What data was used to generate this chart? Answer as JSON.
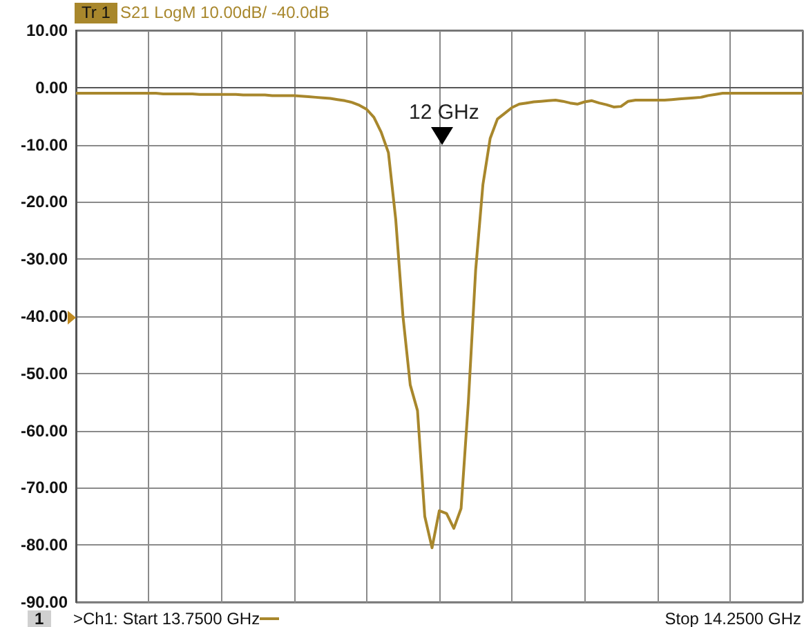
{
  "chart_data": {
    "type": "line",
    "title": "S21 LogM 10.00dB/  -40.0dB",
    "annotations": [
      "Tr 1",
      "1",
      ">Ch1: Start  13.7500 GHz",
      "Stop  14.2500 GHz",
      "12 GHz"
    ],
    "categories": [
      null,
      null,
      null,
      null,
      null,
      null,
      null,
      null,
      null,
      null,
      null,
      null,
      null,
      null,
      null,
      null,
      null,
      null,
      null,
      null,
      null,
      null,
      null,
      null,
      null,
      null,
      null,
      null,
      null,
      null,
      null,
      null,
      null,
      null,
      null,
      null,
      null,
      null,
      null,
      null,
      null,
      null,
      null,
      null,
      null,
      null,
      null,
      null,
      null,
      null,
      null,
      null,
      null,
      null,
      null,
      null,
      null,
      null,
      null,
      null,
      null,
      null,
      null,
      null,
      null,
      null,
      null,
      null,
      null,
      null,
      null,
      null,
      null,
      null,
      null,
      null,
      null,
      null,
      null,
      null,
      null,
      null,
      null,
      null,
      null,
      null,
      null,
      null,
      null,
      null,
      null,
      null,
      null,
      null,
      null,
      null,
      null,
      null,
      null,
      null,
      null
    ],
    "ylim": [
      -90,
      10
    ],
    "yticks": [
      {
        "value": 10,
        "label": "10.00"
      },
      {
        "value": 0,
        "label": "0.00"
      },
      {
        "value": -10,
        "label": "-10.00"
      },
      {
        "value": -20,
        "label": "-20.00"
      },
      {
        "value": -30,
        "label": "-30.00"
      },
      {
        "value": -40,
        "label": "-40.00"
      },
      {
        "value": -50,
        "label": "-50.00"
      },
      {
        "value": -60,
        "label": "-60.00"
      },
      {
        "value": -70,
        "label": "-70.00"
      },
      {
        "value": -80,
        "label": "-80.00"
      },
      {
        "value": -90,
        "label": "-90.00"
      }
    ],
    "tick_labels": "y",
    "grid": true,
    "line_style": "solid",
    "series": [
      {
        "color": "#a8872c",
        "values": [
          -1.0,
          -1.0,
          -1.0,
          -1.0,
          -1.0,
          -1.0,
          -1.0,
          -1.0,
          -1.0,
          -1.0,
          -1.0,
          -1.0,
          -1.1,
          -1.1,
          -1.1,
          -1.1,
          -1.1,
          -1.2,
          -1.2,
          -1.2,
          -1.2,
          -1.2,
          -1.2,
          -1.3,
          -1.3,
          -1.3,
          -1.3,
          -1.4,
          -1.4,
          -1.4,
          -1.4,
          -1.5,
          -1.6,
          -1.7,
          -1.8,
          -1.9,
          -2.1,
          -2.3,
          -2.6,
          -3.1,
          -3.8,
          -5.2,
          -7.8,
          -11.4,
          -23.0,
          -40.0,
          -52.0,
          -56.5,
          -75.0,
          -80.5,
          -74.0,
          -74.5,
          -77.1,
          -73.6,
          -55.0,
          -32.0,
          -17.0,
          -8.9,
          -5.5,
          -4.5,
          -3.5,
          -2.9,
          -2.7,
          -2.5,
          -2.4,
          -2.3,
          -2.2,
          -2.4,
          -2.7,
          -2.9,
          -2.5,
          -2.3,
          -2.7,
          -3.0,
          -3.4,
          -3.3,
          -2.4,
          -2.2,
          -2.2,
          -2.2,
          -2.2,
          -2.2,
          -2.1,
          -2.0,
          -1.9,
          -1.8,
          -1.7,
          -1.4,
          -1.2,
          -1.0,
          -1.0,
          -1.0,
          -1.0,
          -1.0,
          -1.0,
          -1.0,
          -1.0,
          -1.0,
          -1.0,
          -1.0,
          -1.0
        ]
      }
    ]
  }
}
